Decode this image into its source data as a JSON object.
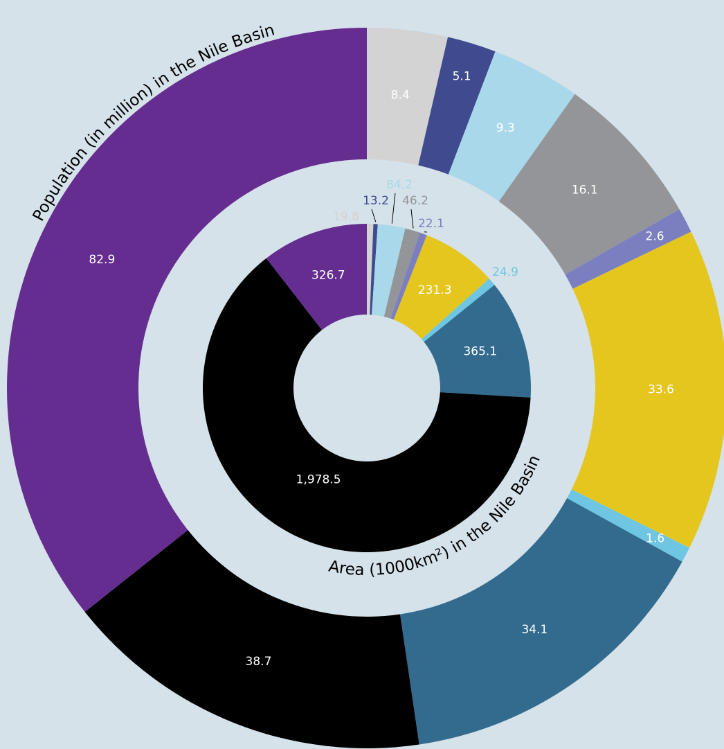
{
  "chart_data": {
    "type": "nested-donut",
    "title": "Population (in million) in the Nile Basin",
    "inner_title": "Area (1000km²) in the Nile Basin",
    "colors": [
      "#d3d3d3",
      "#3f4a8f",
      "#a9d8ea",
      "#939598",
      "#7b7fc0",
      "#e5c61f",
      "#6ec6e3",
      "#336b8f",
      "#000000",
      "#652d90"
    ],
    "outer": {
      "values": [
        8.4,
        5.1,
        9.3,
        16.1,
        2.6,
        33.6,
        1.6,
        34.1,
        38.7,
        82.9
      ]
    },
    "inner": {
      "values": [
        19.8,
        13.2,
        84.2,
        46.2,
        22.1,
        231.3,
        24.9,
        365.1,
        1978.5,
        326.7
      ],
      "value_labels": [
        "19.8",
        "13.2",
        "84.2",
        "46.2",
        "22.1",
        "231.3",
        "24.9",
        "365.1",
        "1,978.5",
        "326.7"
      ]
    }
  }
}
